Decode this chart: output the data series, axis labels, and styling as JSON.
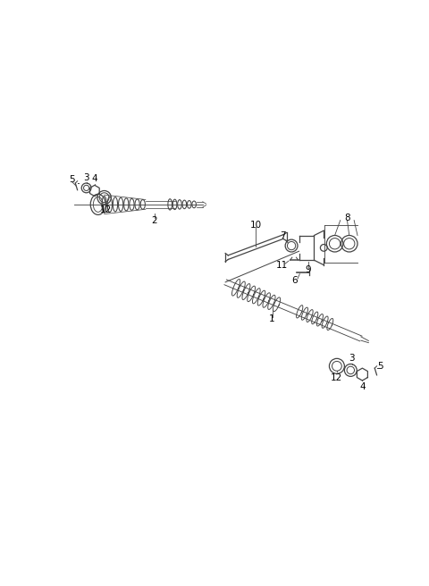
{
  "bg_color": "#ffffff",
  "line_color": "#444444",
  "fig_width": 4.8,
  "fig_height": 6.56,
  "dpi": 100,
  "lw": 0.9
}
